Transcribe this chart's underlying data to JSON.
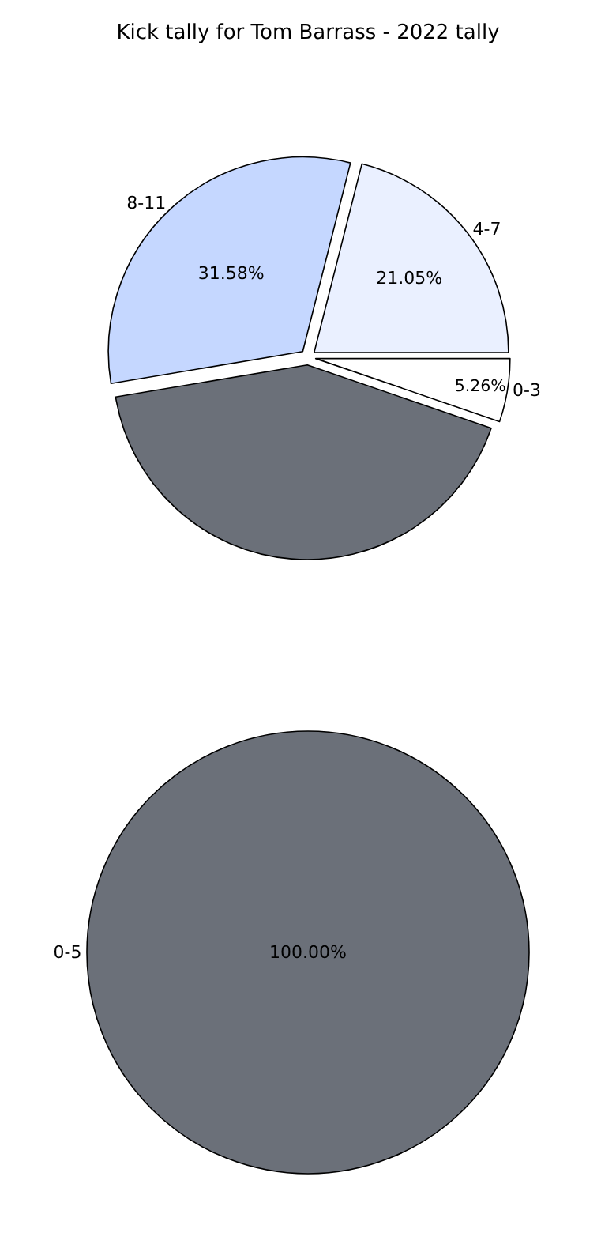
{
  "chart_data": [
    {
      "type": "pie",
      "title": "Kick tally for Tom Barrass - 2022 tally",
      "categories": [
        "0-3",
        "4-7",
        "8-11",
        null
      ],
      "values": [
        5.26,
        21.05,
        31.58,
        42.11
      ],
      "value_labels": [
        "5.26%",
        "21.05%",
        "31.58%",
        null
      ],
      "colors": [
        "#ffffff",
        "#eaf0ff",
        "#c5d7ff",
        "#6b7079"
      ],
      "legend": false
    },
    {
      "type": "pie",
      "categories": [
        "0-5"
      ],
      "values": [
        100
      ],
      "value_labels": [
        "100.00%"
      ],
      "colors": [
        "#6b7079"
      ],
      "legend": false
    }
  ]
}
